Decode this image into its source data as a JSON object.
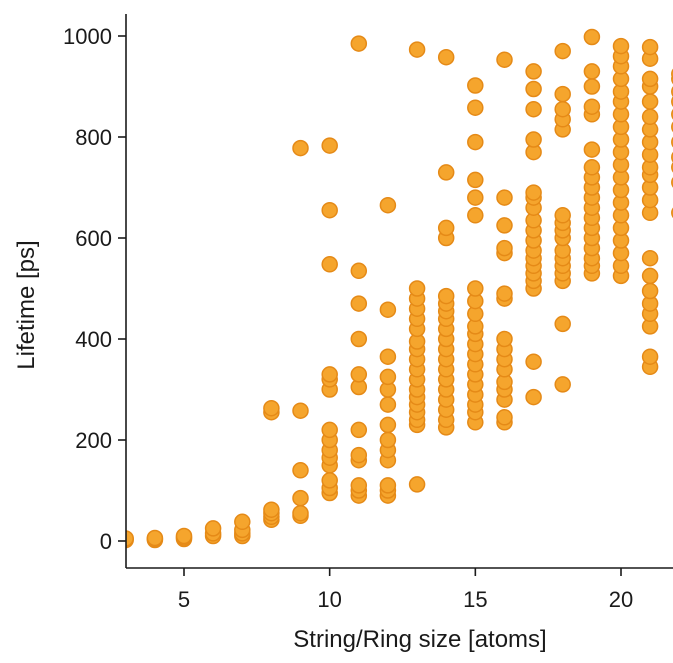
{
  "chart_data": {
    "type": "scatter",
    "title": "",
    "xlabel": "String/Ring size [atoms]",
    "ylabel": "Lifetime [ps]",
    "xlim": [
      3,
      22
    ],
    "ylim": [
      -50,
      1050
    ],
    "xticks": [
      5,
      10,
      15,
      20
    ],
    "yticks": [
      0,
      200,
      400,
      600,
      800,
      1000
    ],
    "grid": false,
    "legend": "none",
    "marker_color": "#f5a52d",
    "marker_edge_color": "#e58a17",
    "series": [
      {
        "points": [
          [
            3,
            2
          ],
          [
            3,
            5
          ],
          [
            4,
            2
          ],
          [
            4,
            4
          ],
          [
            4,
            6
          ],
          [
            5,
            4
          ],
          [
            5,
            7
          ],
          [
            5,
            10
          ],
          [
            6,
            10
          ],
          [
            6,
            15
          ],
          [
            6,
            25
          ],
          [
            7,
            10
          ],
          [
            7,
            15
          ],
          [
            7,
            22
          ],
          [
            7,
            38
          ],
          [
            8,
            42
          ],
          [
            8,
            48
          ],
          [
            8,
            55
          ],
          [
            8,
            62
          ],
          [
            8,
            255
          ],
          [
            8,
            263
          ],
          [
            9,
            50
          ],
          [
            9,
            55
          ],
          [
            9,
            85
          ],
          [
            9,
            140
          ],
          [
            9,
            258
          ],
          [
            9,
            778
          ],
          [
            10,
            95
          ],
          [
            10,
            105
          ],
          [
            10,
            120
          ],
          [
            10,
            150
          ],
          [
            10,
            165
          ],
          [
            10,
            180
          ],
          [
            10,
            200
          ],
          [
            10,
            220
          ],
          [
            10,
            300
          ],
          [
            10,
            320
          ],
          [
            10,
            330
          ],
          [
            10,
            548
          ],
          [
            10,
            655
          ],
          [
            10,
            783
          ],
          [
            11,
            90
          ],
          [
            11,
            100
          ],
          [
            11,
            110
          ],
          [
            11,
            160
          ],
          [
            11,
            170
          ],
          [
            11,
            220
          ],
          [
            11,
            305
          ],
          [
            11,
            330
          ],
          [
            11,
            400
          ],
          [
            11,
            470
          ],
          [
            11,
            535
          ],
          [
            11,
            985
          ],
          [
            12,
            90
          ],
          [
            12,
            100
          ],
          [
            12,
            110
          ],
          [
            12,
            160
          ],
          [
            12,
            180
          ],
          [
            12,
            200
          ],
          [
            12,
            230
          ],
          [
            12,
            270
          ],
          [
            12,
            300
          ],
          [
            12,
            325
          ],
          [
            12,
            365
          ],
          [
            12,
            458
          ],
          [
            12,
            665
          ],
          [
            13,
            112
          ],
          [
            13,
            230
          ],
          [
            13,
            240
          ],
          [
            13,
            255
          ],
          [
            13,
            270
          ],
          [
            13,
            285
          ],
          [
            13,
            300
          ],
          [
            13,
            320
          ],
          [
            13,
            340
          ],
          [
            13,
            360
          ],
          [
            13,
            380
          ],
          [
            13,
            395
          ],
          [
            13,
            420
          ],
          [
            13,
            440
          ],
          [
            13,
            460
          ],
          [
            13,
            480
          ],
          [
            13,
            500
          ],
          [
            13,
            973
          ],
          [
            14,
            225
          ],
          [
            14,
            240
          ],
          [
            14,
            260
          ],
          [
            14,
            280
          ],
          [
            14,
            300
          ],
          [
            14,
            320
          ],
          [
            14,
            340
          ],
          [
            14,
            360
          ],
          [
            14,
            380
          ],
          [
            14,
            400
          ],
          [
            14,
            420
          ],
          [
            14,
            440
          ],
          [
            14,
            455
          ],
          [
            14,
            470
          ],
          [
            14,
            485
          ],
          [
            14,
            600
          ],
          [
            14,
            620
          ],
          [
            14,
            730
          ],
          [
            14,
            958
          ],
          [
            15,
            235
          ],
          [
            15,
            255
          ],
          [
            15,
            270
          ],
          [
            15,
            290
          ],
          [
            15,
            310
          ],
          [
            15,
            330
          ],
          [
            15,
            350
          ],
          [
            15,
            370
          ],
          [
            15,
            390
          ],
          [
            15,
            410
          ],
          [
            15,
            425
          ],
          [
            15,
            450
          ],
          [
            15,
            475
          ],
          [
            15,
            500
          ],
          [
            15,
            645
          ],
          [
            15,
            680
          ],
          [
            15,
            715
          ],
          [
            15,
            790
          ],
          [
            15,
            858
          ],
          [
            15,
            902
          ],
          [
            16,
            235
          ],
          [
            16,
            245
          ],
          [
            16,
            280
          ],
          [
            16,
            300
          ],
          [
            16,
            315
          ],
          [
            16,
            340
          ],
          [
            16,
            360
          ],
          [
            16,
            380
          ],
          [
            16,
            400
          ],
          [
            16,
            480
          ],
          [
            16,
            490
          ],
          [
            16,
            570
          ],
          [
            16,
            580
          ],
          [
            16,
            625
          ],
          [
            16,
            680
          ],
          [
            16,
            953
          ],
          [
            17,
            285
          ],
          [
            17,
            355
          ],
          [
            17,
            500
          ],
          [
            17,
            515
          ],
          [
            17,
            530
          ],
          [
            17,
            545
          ],
          [
            17,
            560
          ],
          [
            17,
            575
          ],
          [
            17,
            595
          ],
          [
            17,
            615
          ],
          [
            17,
            635
          ],
          [
            17,
            660
          ],
          [
            17,
            680
          ],
          [
            17,
            690
          ],
          [
            17,
            770
          ],
          [
            17,
            795
          ],
          [
            17,
            855
          ],
          [
            17,
            895
          ],
          [
            17,
            930
          ],
          [
            18,
            310
          ],
          [
            18,
            430
          ],
          [
            18,
            515
          ],
          [
            18,
            530
          ],
          [
            18,
            545
          ],
          [
            18,
            560
          ],
          [
            18,
            575
          ],
          [
            18,
            600
          ],
          [
            18,
            615
          ],
          [
            18,
            630
          ],
          [
            18,
            645
          ],
          [
            18,
            815
          ],
          [
            18,
            835
          ],
          [
            18,
            855
          ],
          [
            18,
            885
          ],
          [
            18,
            970
          ],
          [
            19,
            530
          ],
          [
            19,
            545
          ],
          [
            19,
            560
          ],
          [
            19,
            580
          ],
          [
            19,
            600
          ],
          [
            19,
            620
          ],
          [
            19,
            640
          ],
          [
            19,
            660
          ],
          [
            19,
            680
          ],
          [
            19,
            700
          ],
          [
            19,
            720
          ],
          [
            19,
            740
          ],
          [
            19,
            775
          ],
          [
            19,
            845
          ],
          [
            19,
            860
          ],
          [
            19,
            900
          ],
          [
            19,
            930
          ],
          [
            19,
            998
          ],
          [
            20,
            525
          ],
          [
            20,
            545
          ],
          [
            20,
            570
          ],
          [
            20,
            595
          ],
          [
            20,
            620
          ],
          [
            20,
            645
          ],
          [
            20,
            670
          ],
          [
            20,
            695
          ],
          [
            20,
            720
          ],
          [
            20,
            745
          ],
          [
            20,
            770
          ],
          [
            20,
            795
          ],
          [
            20,
            820
          ],
          [
            20,
            845
          ],
          [
            20,
            870
          ],
          [
            20,
            890
          ],
          [
            20,
            915
          ],
          [
            20,
            940
          ],
          [
            20,
            960
          ],
          [
            20,
            980
          ],
          [
            21,
            345
          ],
          [
            21,
            365
          ],
          [
            21,
            425
          ],
          [
            21,
            450
          ],
          [
            21,
            470
          ],
          [
            21,
            495
          ],
          [
            21,
            525
          ],
          [
            21,
            560
          ],
          [
            21,
            650
          ],
          [
            21,
            675
          ],
          [
            21,
            700
          ],
          [
            21,
            725
          ],
          [
            21,
            740
          ],
          [
            21,
            765
          ],
          [
            21,
            790
          ],
          [
            21,
            815
          ],
          [
            21,
            840
          ],
          [
            21,
            870
          ],
          [
            21,
            900
          ],
          [
            21,
            915
          ],
          [
            21,
            955
          ],
          [
            21,
            978
          ],
          [
            22,
            650
          ],
          [
            22,
            710
          ],
          [
            22,
            740
          ],
          [
            22,
            760
          ],
          [
            22,
            790
          ],
          [
            22,
            820
          ],
          [
            22,
            845
          ],
          [
            22,
            870
          ],
          [
            22,
            890
          ],
          [
            22,
            915
          ],
          [
            22,
            925
          ]
        ]
      }
    ]
  }
}
